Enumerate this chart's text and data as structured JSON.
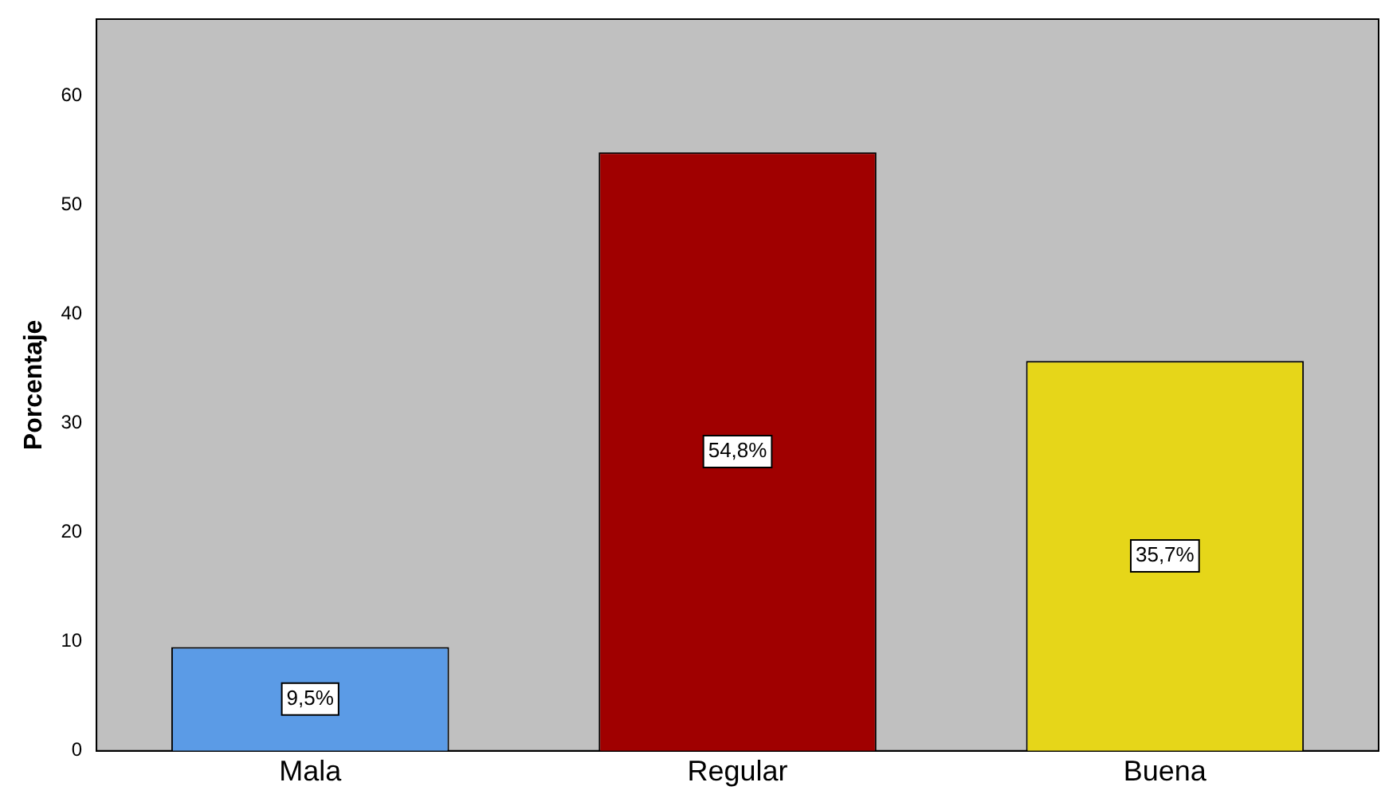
{
  "chart_data": {
    "type": "bar",
    "ylabel": "Porcentaje",
    "categories": [
      "Mala",
      "Regular",
      "Buena"
    ],
    "values": [
      9.5,
      54.8,
      35.7
    ],
    "colors": [
      "#5b9be6",
      "#a00000",
      "#e6d619"
    ],
    "value_labels": [
      "9,5%",
      "54,8%",
      "35,7%"
    ],
    "ylim": [
      0,
      67
    ],
    "yticks": [
      0,
      10,
      20,
      30,
      40,
      50,
      60
    ],
    "grid": false,
    "legend": false
  }
}
